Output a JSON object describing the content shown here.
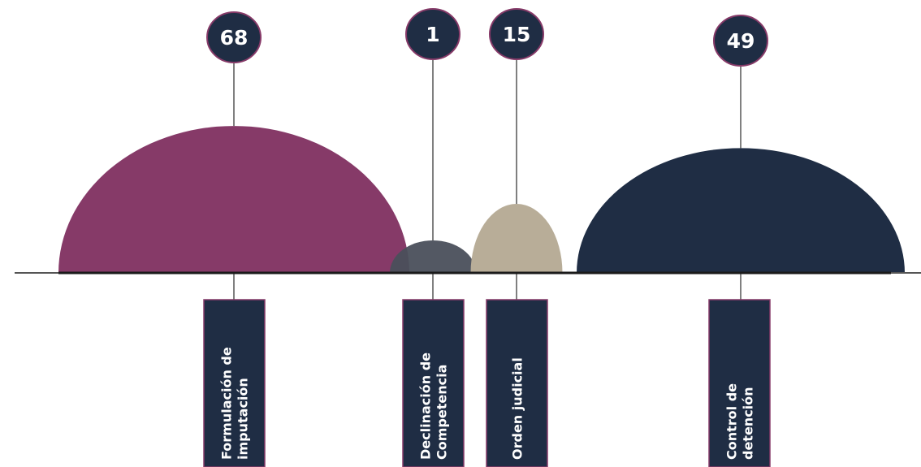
{
  "chart_data": {
    "type": "bar",
    "categories": [
      "Formulación de imputación",
      "Declinación de Competencia",
      "Orden judicial",
      "Control de detención"
    ],
    "values": [
      68,
      1,
      15,
      49
    ],
    "value_labels": [
      "68",
      "1",
      "15",
      "49"
    ],
    "label_lines": [
      [
        "Formulación de",
        "imputación"
      ],
      [
        "Declinación de",
        "Competencia"
      ],
      [
        "Orden judicial"
      ],
      [
        "Control de",
        "detención"
      ]
    ],
    "colors": [
      "#863a68",
      "#4a4f5b",
      "#b8ad98",
      "#1f2d44"
    ],
    "label_box_color": "#1f2d44",
    "border_accent": "#863a68",
    "title": "",
    "xlabel": "",
    "ylabel": ""
  }
}
